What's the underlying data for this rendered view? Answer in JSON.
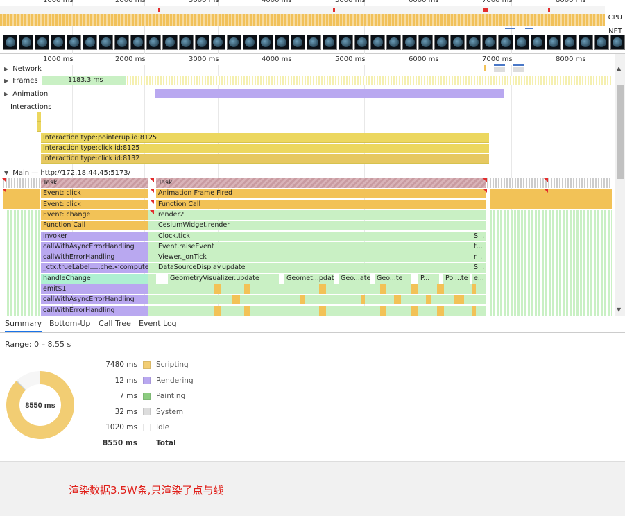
{
  "overview": {
    "ticks": [
      "1000 ms",
      "2000 ms",
      "3000 ms",
      "4000 ms",
      "5000 ms",
      "6000 ms",
      "7000 ms",
      "8000 ms"
    ],
    "cpu_label": "CPU",
    "net_label": "NET",
    "filmstrip_frame_count": 39
  },
  "timeline": {
    "ticks": [
      "1000 ms",
      "2000 ms",
      "3000 ms",
      "4000 ms",
      "5000 ms",
      "6000 ms",
      "7000 ms",
      "8000 ms"
    ],
    "tracks": {
      "network": "Network",
      "frames": "Frames",
      "frames_duration": "1183.3 ms",
      "animation": "Animation",
      "interactions": "Interactions",
      "main": "Main — http://172.18.44.45:5173/"
    },
    "interactions": [
      "Interaction type:pointerup id:8125",
      "Interaction type:click id:8125",
      "Interaction type:click id:8132"
    ],
    "flame_left": [
      "Task",
      "Event: click",
      "Event: click",
      "Event: change",
      "Function Call",
      "invoker",
      "callWithAsyncErrorHandling",
      "callWithErrorHandling",
      "_ctx.trueLabel.....che.<computed>",
      "handleChange",
      "emit$1",
      "callWithAsyncErrorHandling",
      "callWithErrorHandling"
    ],
    "flame_right": [
      "Task",
      "Animation Frame Fired",
      "Function Call",
      "render2",
      "CesiumWidget.render",
      "Clock.tick",
      "Event.raiseEvent",
      "Viewer._onTick",
      "DataSourceDisplay.update",
      "GeometryVisualizer.update"
    ],
    "flame_right_tails": [
      "S...",
      "t...",
      "r...",
      "S...",
      "e..."
    ],
    "geometry_children": [
      "Geomet...pdate",
      "Geo...ate",
      "Geo...te",
      "P...",
      "Pol...te"
    ]
  },
  "tabs": [
    "Summary",
    "Bottom-Up",
    "Call Tree",
    "Event Log"
  ],
  "summary": {
    "range": "Range: 0 – 8.55 s",
    "total_center": "8550 ms",
    "rows": [
      {
        "value": "7480 ms",
        "name": "Scripting",
        "color": "#f2cd73",
        "ms": 7480
      },
      {
        "value": "12 ms",
        "name": "Rendering",
        "color": "#b9a8f0",
        "ms": 12
      },
      {
        "value": "7 ms",
        "name": "Painting",
        "color": "#8ccc80",
        "ms": 7
      },
      {
        "value": "32 ms",
        "name": "System",
        "color": "#dddddd",
        "ms": 32
      },
      {
        "value": "1020 ms",
        "name": "Idle",
        "color": "#ffffff",
        "ms": 1020
      }
    ],
    "total": {
      "value": "8550 ms",
      "name": "Total"
    }
  },
  "note": "渲染数据3.5W条,只渲染了点与线"
}
